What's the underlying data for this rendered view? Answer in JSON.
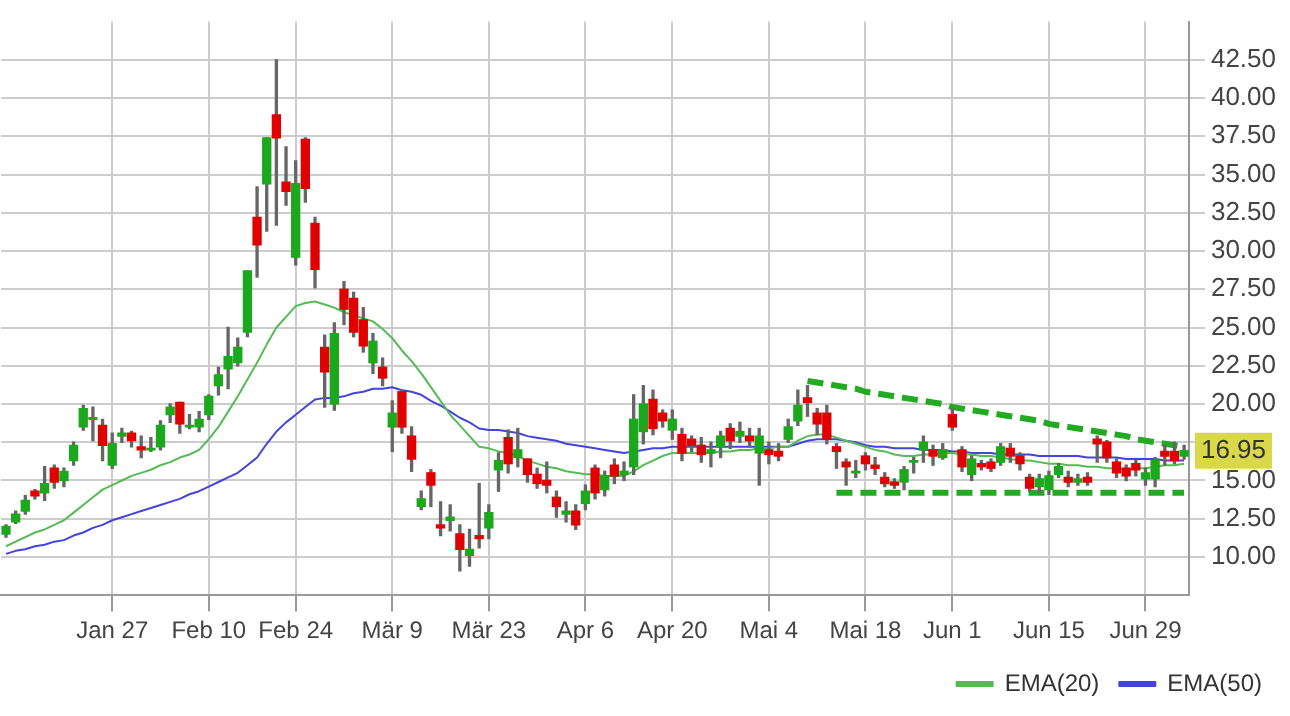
{
  "chart_data": {
    "type": "candlestick",
    "categories": [
      null,
      null,
      null,
      null,
      null,
      null,
      null,
      null,
      null,
      null,
      null,
      "Jan 27",
      null,
      null,
      null,
      null,
      null,
      null,
      null,
      null,
      null,
      "Feb 10",
      null,
      null,
      null,
      null,
      null,
      null,
      null,
      null,
      "Feb 24",
      null,
      null,
      null,
      null,
      null,
      null,
      null,
      null,
      null,
      "Mär 9",
      null,
      null,
      null,
      null,
      null,
      null,
      null,
      null,
      null,
      "Mär 23",
      null,
      null,
      null,
      null,
      null,
      null,
      null,
      null,
      null,
      "Apr 6",
      null,
      null,
      null,
      null,
      null,
      null,
      null,
      null,
      "Apr 20",
      null,
      null,
      null,
      null,
      null,
      null,
      null,
      null,
      null,
      "Mai 4",
      null,
      null,
      null,
      null,
      null,
      null,
      null,
      null,
      null,
      "Mai 18",
      null,
      null,
      null,
      null,
      null,
      null,
      null,
      null,
      "Jun 1",
      null,
      null,
      null,
      null,
      null,
      null,
      null,
      null,
      null,
      "Jun 15",
      null,
      null,
      null,
      null,
      null,
      null,
      null,
      null,
      null,
      "Jun 29",
      null,
      null,
      null,
      null
    ],
    "ohlc": [
      [
        11.5,
        12.1,
        11.3,
        12.0
      ],
      [
        12.3,
        13.0,
        12.2,
        12.8
      ],
      [
        13.0,
        14.0,
        12.8,
        13.7
      ],
      [
        14.3,
        14.4,
        13.8,
        14.0
      ],
      [
        14.2,
        15.9,
        13.7,
        14.8
      ],
      [
        15.8,
        16.0,
        14.5,
        14.9
      ],
      [
        15.0,
        15.8,
        14.6,
        15.6
      ],
      [
        16.3,
        17.5,
        16.0,
        17.3
      ],
      [
        18.5,
        19.9,
        18.3,
        19.7
      ],
      [
        19.0,
        19.8,
        17.6,
        19.1
      ],
      [
        18.6,
        19.0,
        16.3,
        17.3
      ],
      [
        16.0,
        18.1,
        15.8,
        17.4
      ],
      [
        17.9,
        18.4,
        17.5,
        18.1
      ],
      [
        18.1,
        18.2,
        17.2,
        17.6
      ],
      [
        17.2,
        17.9,
        16.5,
        17.0
      ],
      [
        17.0,
        17.8,
        16.9,
        17.1
      ],
      [
        17.2,
        18.9,
        17.0,
        18.6
      ],
      [
        19.3,
        20.0,
        18.8,
        19.8
      ],
      [
        20.1,
        20.1,
        18.1,
        18.7
      ],
      [
        18.5,
        19.3,
        18.4,
        18.6
      ],
      [
        18.5,
        19.5,
        18.2,
        19.0
      ],
      [
        19.3,
        20.6,
        19.0,
        20.5
      ],
      [
        21.2,
        22.4,
        20.6,
        21.9
      ],
      [
        22.3,
        25.0,
        21.0,
        23.1
      ],
      [
        22.7,
        24.3,
        22.5,
        23.7
      ],
      [
        24.7,
        28.7,
        24.4,
        28.7
      ],
      [
        32.2,
        34.2,
        28.3,
        30.4
      ],
      [
        34.4,
        37.4,
        31.3,
        37.4
      ],
      [
        38.9,
        42.5,
        31.7,
        37.4
      ],
      [
        34.5,
        36.8,
        33.0,
        33.9
      ],
      [
        29.6,
        35.9,
        29.1,
        34.4
      ],
      [
        37.3,
        37.4,
        33.2,
        34.1
      ],
      [
        31.8,
        32.2,
        27.6,
        28.8
      ],
      [
        23.7,
        24.5,
        19.8,
        22.1
      ],
      [
        20.0,
        25.3,
        19.6,
        24.6
      ],
      [
        27.5,
        28.0,
        25.2,
        26.2
      ],
      [
        26.9,
        27.3,
        24.4,
        24.7
      ],
      [
        25.5,
        26.3,
        23.4,
        23.8
      ],
      [
        22.7,
        24.6,
        22.0,
        24.1
      ],
      [
        22.4,
        23.0,
        21.2,
        21.7
      ],
      [
        18.5,
        20.2,
        16.9,
        19.4
      ],
      [
        20.8,
        20.9,
        18.1,
        18.5
      ],
      [
        17.9,
        18.5,
        15.6,
        16.4
      ],
      [
        13.3,
        14.3,
        13.1,
        13.8
      ],
      [
        15.5,
        15.7,
        13.3,
        14.7
      ],
      [
        12.1,
        13.6,
        11.4,
        11.9
      ],
      [
        12.4,
        13.4,
        11.7,
        12.6
      ],
      [
        11.5,
        12.1,
        9.1,
        10.5
      ],
      [
        10.1,
        11.8,
        9.4,
        10.5
      ],
      [
        11.4,
        14.8,
        10.6,
        11.2
      ],
      [
        11.9,
        13.4,
        11.2,
        12.9
      ],
      [
        15.7,
        16.8,
        14.3,
        16.3
      ],
      [
        17.8,
        18.3,
        15.5,
        16.1
      ],
      [
        16.5,
        18.4,
        15.9,
        17.0
      ],
      [
        16.4,
        16.4,
        14.9,
        15.4
      ],
      [
        15.4,
        15.8,
        14.5,
        14.8
      ],
      [
        15.0,
        16.2,
        14.2,
        14.7
      ],
      [
        13.9,
        14.3,
        12.6,
        13.3
      ],
      [
        12.8,
        13.6,
        12.3,
        13.0
      ],
      [
        13.0,
        13.4,
        11.8,
        12.1
      ],
      [
        13.5,
        14.7,
        13.1,
        14.3
      ],
      [
        15.8,
        16.0,
        13.8,
        14.2
      ],
      [
        14.4,
        15.6,
        14.0,
        15.3
      ],
      [
        16.0,
        16.4,
        14.8,
        15.3
      ],
      [
        15.4,
        16.2,
        15.0,
        15.6
      ],
      [
        15.9,
        20.6,
        15.4,
        19.0
      ],
      [
        18.2,
        21.2,
        17.4,
        20.0
      ],
      [
        20.3,
        20.9,
        18.0,
        18.4
      ],
      [
        19.4,
        19.6,
        18.5,
        18.9
      ],
      [
        18.3,
        19.6,
        17.7,
        19.0
      ],
      [
        18.0,
        18.4,
        16.3,
        16.8
      ],
      [
        17.7,
        17.9,
        16.9,
        17.3
      ],
      [
        17.3,
        17.8,
        16.2,
        16.7
      ],
      [
        16.8,
        17.5,
        15.9,
        17.0
      ],
      [
        17.2,
        18.2,
        16.5,
        17.9
      ],
      [
        18.4,
        18.7,
        17.1,
        17.6
      ],
      [
        17.9,
        18.8,
        17.5,
        18.2
      ],
      [
        17.9,
        18.4,
        17.2,
        17.6
      ],
      [
        16.8,
        18.4,
        14.7,
        17.9
      ],
      [
        17.0,
        17.5,
        16.1,
        16.7
      ],
      [
        16.9,
        17.4,
        16.3,
        16.6
      ],
      [
        17.7,
        19.0,
        17.5,
        18.5
      ],
      [
        18.9,
        20.9,
        18.6,
        19.9
      ],
      [
        20.4,
        21.2,
        19.2,
        20.1
      ],
      [
        19.4,
        19.7,
        18.0,
        18.7
      ],
      [
        19.4,
        19.9,
        17.4,
        17.7
      ],
      [
        17.2,
        17.4,
        15.8,
        16.9
      ],
      [
        16.2,
        16.4,
        14.7,
        15.9
      ],
      [
        15.5,
        16.3,
        15.2,
        15.6
      ],
      [
        16.6,
        16.8,
        15.7,
        16.1
      ],
      [
        16.0,
        16.5,
        15.4,
        15.8
      ],
      [
        15.2,
        15.5,
        14.6,
        14.8
      ],
      [
        14.9,
        15.1,
        14.5,
        14.7
      ],
      [
        14.9,
        15.9,
        14.4,
        15.7
      ],
      [
        16.2,
        16.5,
        15.5,
        16.3
      ],
      [
        17.0,
        17.9,
        16.2,
        17.5
      ],
      [
        17.0,
        17.3,
        16.0,
        16.6
      ],
      [
        16.5,
        17.4,
        16.4,
        17.0
      ],
      [
        19.3,
        19.7,
        18.3,
        18.5
      ],
      [
        17.0,
        17.2,
        15.6,
        15.9
      ],
      [
        15.4,
        16.6,
        15.0,
        16.4
      ],
      [
        16.1,
        16.3,
        15.7,
        15.9
      ],
      [
        16.2,
        16.4,
        15.6,
        15.8
      ],
      [
        16.2,
        17.4,
        16.0,
        17.2
      ],
      [
        17.1,
        17.4,
        16.2,
        16.6
      ],
      [
        16.6,
        16.8,
        15.7,
        16.1
      ],
      [
        15.2,
        15.4,
        14.3,
        14.5
      ],
      [
        14.6,
        15.4,
        14.2,
        15.1
      ],
      [
        14.4,
        15.6,
        14.1,
        15.3
      ],
      [
        15.4,
        16.1,
        15.2,
        15.9
      ],
      [
        15.2,
        15.6,
        14.6,
        14.9
      ],
      [
        14.9,
        15.4,
        14.7,
        15.1
      ],
      [
        15.2,
        15.5,
        14.7,
        14.9
      ],
      [
        17.7,
        17.9,
        16.2,
        17.4
      ],
      [
        17.5,
        17.6,
        16.2,
        16.5
      ],
      [
        16.2,
        16.4,
        15.2,
        15.5
      ],
      [
        15.8,
        16.0,
        15.0,
        15.3
      ],
      [
        16.1,
        16.3,
        15.3,
        15.7
      ],
      [
        15.1,
        15.8,
        14.7,
        15.5
      ],
      [
        15.1,
        16.5,
        14.6,
        16.3
      ],
      [
        16.9,
        17.3,
        16.0,
        16.6
      ],
      [
        16.9,
        17.5,
        16.1,
        16.3
      ],
      [
        16.6,
        17.3,
        16.4,
        16.95
      ]
    ],
    "colors": [
      "#1ca81c",
      "#1ca81c",
      "#1ca81c",
      "#e00000",
      "#1ca81c",
      "#e00000",
      "#1ca81c",
      "#1ca81c",
      "#1ca81c",
      "#1ca81c",
      "#e00000",
      "#1ca81c",
      "#1ca81c",
      "#e00000",
      "#e00000",
      "#1ca81c",
      "#1ca81c",
      "#1ca81c",
      "#e00000",
      "#1ca81c",
      "#1ca81c",
      "#1ca81c",
      "#1ca81c",
      "#1ca81c",
      "#1ca81c",
      "#1ca81c",
      "#e00000",
      "#1ca81c",
      "#e00000",
      "#e00000",
      "#1ca81c",
      "#e00000",
      "#e00000",
      "#e00000",
      "#1ca81c",
      "#e00000",
      "#e00000",
      "#e00000",
      "#1ca81c",
      "#e00000",
      "#1ca81c",
      "#e00000",
      "#e00000",
      "#1ca81c",
      "#e00000",
      "#e00000",
      "#1ca81c",
      "#e00000",
      "#1ca81c",
      "#e00000",
      "#1ca81c",
      "#1ca81c",
      "#e00000",
      "#1ca81c",
      "#e00000",
      "#e00000",
      "#e00000",
      "#e00000",
      "#1ca81c",
      "#e00000",
      "#1ca81c",
      "#e00000",
      "#1ca81c",
      "#e00000",
      "#1ca81c",
      "#1ca81c",
      "#1ca81c",
      "#e00000",
      "#e00000",
      "#1ca81c",
      "#e00000",
      "#e00000",
      "#e00000",
      "#1ca81c",
      "#1ca81c",
      "#e00000",
      "#1ca81c",
      "#e00000",
      "#1ca81c",
      "#e00000",
      "#e00000",
      "#1ca81c",
      "#1ca81c",
      "#e00000",
      "#e00000",
      "#e00000",
      "#e00000",
      "#e00000",
      "#1ca81c",
      "#e00000",
      "#e00000",
      "#e00000",
      "#e00000",
      "#1ca81c",
      "#1ca81c",
      "#1ca81c",
      "#e00000",
      "#1ca81c",
      "#e00000",
      "#e00000",
      "#1ca81c",
      "#e00000",
      "#e00000",
      "#1ca81c",
      "#e00000",
      "#e00000",
      "#e00000",
      "#1ca81c",
      "#1ca81c",
      "#1ca81c",
      "#e00000",
      "#1ca81c",
      "#e00000",
      "#e00000",
      "#e00000",
      "#e00000",
      "#e00000",
      "#e00000",
      "#1ca81c",
      "#1ca81c",
      "#e00000",
      "#e00000",
      "#1ca81c"
    ],
    "series": [
      {
        "type": "line",
        "name": "EMA(20)",
        "color": "#55bb55",
        "values": [
          10.7,
          11.0,
          11.3,
          11.6,
          11.8,
          12.1,
          12.4,
          12.9,
          13.4,
          13.9,
          14.4,
          14.7,
          15.0,
          15.3,
          15.5,
          15.7,
          16.0,
          16.2,
          16.5,
          16.7,
          17.0,
          17.7,
          18.5,
          19.5,
          20.5,
          21.6,
          22.7,
          23.9,
          25.0,
          25.7,
          26.4,
          26.6,
          26.7,
          26.5,
          26.3,
          26.0,
          25.8,
          25.6,
          25.4,
          24.9,
          24.3,
          23.5,
          22.8,
          22.0,
          21.1,
          20.2,
          19.3,
          18.6,
          17.9,
          17.2,
          17.1,
          16.9,
          16.8,
          16.6,
          16.3,
          16.1,
          15.9,
          15.8,
          15.6,
          15.5,
          15.4,
          15.4,
          15.3,
          15.3,
          15.3,
          15.6,
          16.0,
          16.3,
          16.6,
          16.8,
          16.8,
          16.8,
          16.8,
          16.8,
          16.9,
          16.9,
          17.0,
          17.0,
          17.1,
          17.1,
          17.2,
          17.2,
          17.6,
          17.9,
          18.0,
          18.0,
          17.8,
          17.6,
          17.4,
          17.2,
          17.0,
          16.9,
          16.7,
          16.6,
          16.6,
          16.7,
          16.7,
          16.8,
          16.8,
          16.7,
          16.7,
          16.6,
          16.6,
          16.5,
          16.4,
          16.3,
          16.3,
          16.2,
          16.1,
          16.1,
          16.0,
          16.0,
          15.9,
          15.9,
          15.8,
          15.8,
          15.7,
          15.8,
          15.8,
          15.9,
          16.0,
          16.0,
          16.1
        ]
      },
      {
        "type": "line",
        "name": "EMA(50)",
        "color": "#4444dd",
        "values": [
          10.2,
          10.4,
          10.5,
          10.7,
          10.8,
          11.0,
          11.1,
          11.4,
          11.6,
          11.9,
          12.1,
          12.4,
          12.6,
          12.8,
          13.0,
          13.2,
          13.4,
          13.6,
          13.8,
          14.1,
          14.3,
          14.6,
          14.9,
          15.2,
          15.5,
          16.0,
          16.5,
          17.4,
          18.2,
          18.8,
          19.3,
          19.8,
          20.3,
          20.4,
          20.4,
          20.5,
          20.7,
          20.8,
          21.0,
          21.0,
          21.1,
          20.9,
          20.8,
          20.6,
          20.2,
          19.9,
          19.5,
          19.1,
          18.8,
          18.4,
          18.3,
          18.3,
          18.2,
          18.1,
          17.9,
          17.8,
          17.7,
          17.6,
          17.4,
          17.3,
          17.2,
          17.1,
          17.0,
          16.9,
          16.8,
          16.9,
          17.0,
          17.1,
          17.1,
          17.2,
          17.2,
          17.2,
          17.2,
          17.2,
          17.2,
          17.2,
          17.2,
          17.2,
          17.2,
          17.2,
          17.2,
          17.2,
          17.4,
          17.6,
          17.7,
          17.7,
          17.7,
          17.6,
          17.5,
          17.3,
          17.2,
          17.2,
          17.1,
          17.1,
          17.1,
          17.0,
          17.0,
          17.0,
          16.9,
          16.9,
          16.8,
          16.8,
          16.8,
          16.7,
          16.7,
          16.7,
          16.7,
          16.6,
          16.6,
          16.6,
          16.6,
          16.6,
          16.5,
          16.5,
          16.5,
          16.5,
          16.4,
          16.4,
          16.4,
          16.4,
          16.3,
          16.3,
          16.3
        ]
      },
      {
        "type": "line",
        "color": "#22aa22",
        "line_style": "dashed",
        "values": [
          null,
          null,
          null,
          null,
          null,
          null,
          null,
          null,
          null,
          null,
          null,
          null,
          null,
          null,
          null,
          null,
          null,
          null,
          null,
          null,
          null,
          null,
          null,
          null,
          null,
          null,
          null,
          null,
          null,
          null,
          null,
          null,
          null,
          null,
          null,
          null,
          null,
          null,
          null,
          null,
          null,
          null,
          null,
          null,
          null,
          null,
          null,
          null,
          null,
          null,
          null,
          null,
          null,
          null,
          null,
          null,
          null,
          null,
          null,
          null,
          null,
          null,
          null,
          null,
          null,
          null,
          null,
          null,
          null,
          null,
          null,
          null,
          null,
          null,
          null,
          null,
          null,
          null,
          null,
          null,
          null,
          null,
          null,
          21.5,
          21.4,
          21.3,
          21.2,
          21.1,
          21.0,
          20.8,
          20.7,
          20.6,
          20.5,
          20.4,
          20.3,
          20.2,
          20.1,
          20.0,
          19.8,
          19.7,
          19.6,
          19.5,
          19.4,
          19.3,
          19.2,
          19.1,
          19.0,
          18.9,
          18.7,
          18.6,
          18.5,
          18.4,
          18.3,
          18.2,
          18.1,
          18.0,
          17.9,
          17.7,
          17.6,
          17.5,
          17.4,
          17.3,
          17.2
        ]
      },
      {
        "type": "line",
        "color": "#22aa22",
        "line_style": "dashed",
        "values": [
          null,
          null,
          null,
          null,
          null,
          null,
          null,
          null,
          null,
          null,
          null,
          null,
          null,
          null,
          null,
          null,
          null,
          null,
          null,
          null,
          null,
          null,
          null,
          null,
          null,
          null,
          null,
          null,
          null,
          null,
          null,
          null,
          null,
          null,
          null,
          null,
          null,
          null,
          null,
          null,
          null,
          null,
          null,
          null,
          null,
          null,
          null,
          null,
          null,
          null,
          null,
          null,
          null,
          null,
          null,
          null,
          null,
          null,
          null,
          null,
          null,
          null,
          null,
          null,
          null,
          null,
          null,
          null,
          null,
          null,
          null,
          null,
          null,
          null,
          null,
          null,
          null,
          null,
          null,
          null,
          null,
          null,
          null,
          null,
          null,
          null,
          14.2,
          14.2,
          14.2,
          14.2,
          14.2,
          14.2,
          14.2,
          14.2,
          14.2,
          14.2,
          14.2,
          14.2,
          14.2,
          14.2,
          14.2,
          14.2,
          14.2,
          14.2,
          14.2,
          14.2,
          14.2,
          14.2,
          14.2,
          14.2,
          14.2,
          14.2,
          14.2,
          14.2,
          14.2,
          14.2,
          14.2,
          14.2,
          14.2,
          14.2,
          14.2,
          14.2,
          14.2
        ]
      }
    ],
    "ylim": [
      7.5,
      45
    ],
    "yticks": [
      {
        "value": 10,
        "label": "10.00"
      },
      {
        "value": 12.5,
        "label": "12.50"
      },
      {
        "value": 15,
        "label": "15.00"
      },
      {
        "value": 17.5,
        "label": null
      },
      {
        "value": 20,
        "label": "20.00"
      },
      {
        "value": 22.5,
        "label": "22.50"
      },
      {
        "value": 25,
        "label": "25.00"
      },
      {
        "value": 27.5,
        "label": "27.50"
      },
      {
        "value": 30,
        "label": "30.00"
      },
      {
        "value": 32.5,
        "label": "32.50"
      },
      {
        "value": 35,
        "label": "35.00"
      },
      {
        "value": 37.5,
        "label": "37.50"
      },
      {
        "value": 40,
        "label": "40.00"
      },
      {
        "value": 42.5,
        "label": "42.50"
      }
    ],
    "annotations": [
      "16.95"
    ],
    "grid": true,
    "legend": "bottom right"
  }
}
